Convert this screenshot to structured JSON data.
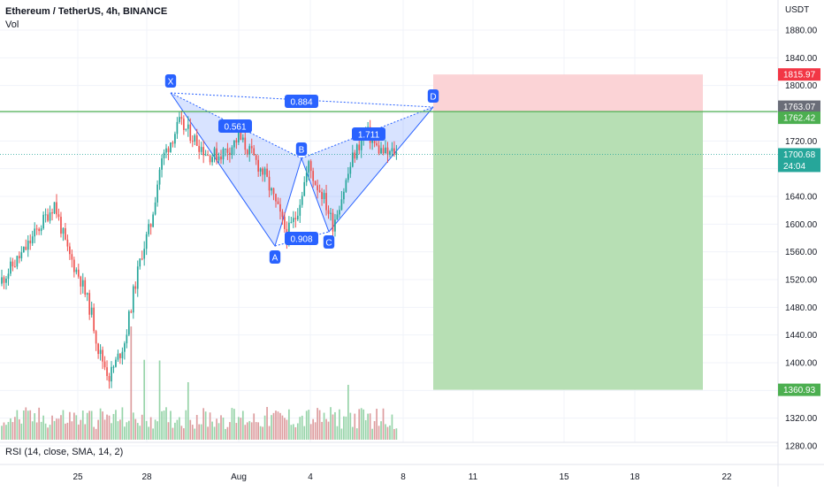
{
  "header": {
    "symbol_line": "Ethereum / TetherUS, 4h, BINANCE",
    "volume_label": "Vol",
    "rsi_label": "RSI (14, close, SMA, 14, 2)"
  },
  "chart_data": {
    "type": "candlestick",
    "currency": "USDT",
    "price_ticks": [
      "1880.00",
      "1840.00",
      "1800.00",
      "1720.00",
      "1680.00",
      "1640.00",
      "1600.00",
      "1560.00",
      "1520.00",
      "1480.00",
      "1440.00",
      "1400.00",
      "1320.00",
      "1280.00"
    ],
    "time_ticks": [
      "25",
      "28",
      "Aug",
      "4",
      "8",
      "11",
      "15",
      "18",
      "22"
    ],
    "price_badges": {
      "stop": "1815.97",
      "high": "1763.07",
      "line": "1762.42",
      "last": "1700.68",
      "countdown": "24:04",
      "target": "1360.93"
    },
    "harmonic_pattern": {
      "points": [
        "X",
        "A",
        "B",
        "C",
        "D"
      ],
      "ratios": {
        "xab": "0.561",
        "xad": "0.884",
        "abc": "0.908",
        "bcd": "1.711"
      }
    },
    "colors": {
      "up": "#26a69a",
      "down": "#ef5350",
      "pattern": "#2962ff",
      "profit_zone": "#b7dfb4",
      "stop_zone": "#fbd3d6",
      "horizontal_line": "#4caf50"
    }
  }
}
